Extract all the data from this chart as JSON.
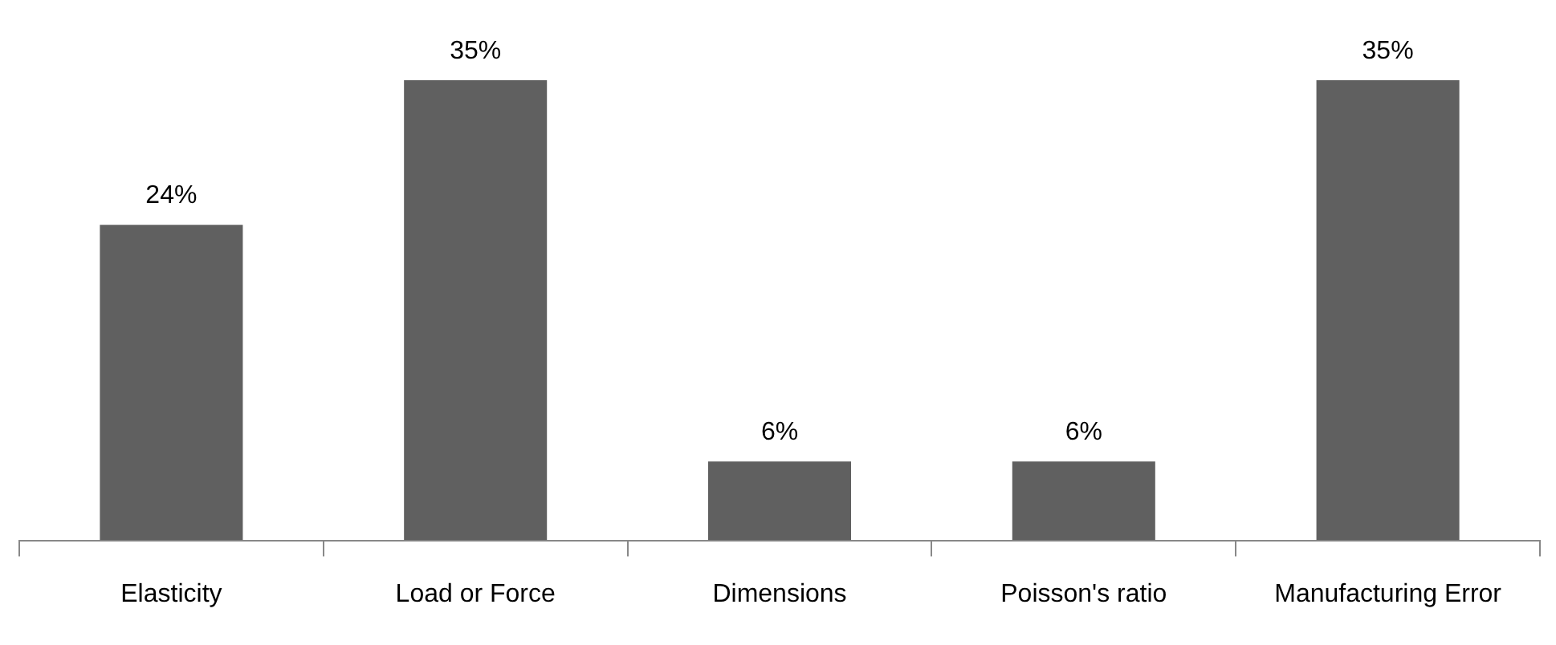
{
  "chart_data": {
    "type": "bar",
    "categories": [
      "Elasticity",
      "Load or Force",
      "Dimensions",
      "Poisson's ratio",
      "Manufacturing Error"
    ],
    "values": [
      24,
      35,
      6,
      6,
      35
    ],
    "color": "#606060",
    "value_labels": [
      "24%",
      "35%",
      "6%",
      "6%",
      "35%"
    ],
    "grid": false,
    "legend": false
  }
}
